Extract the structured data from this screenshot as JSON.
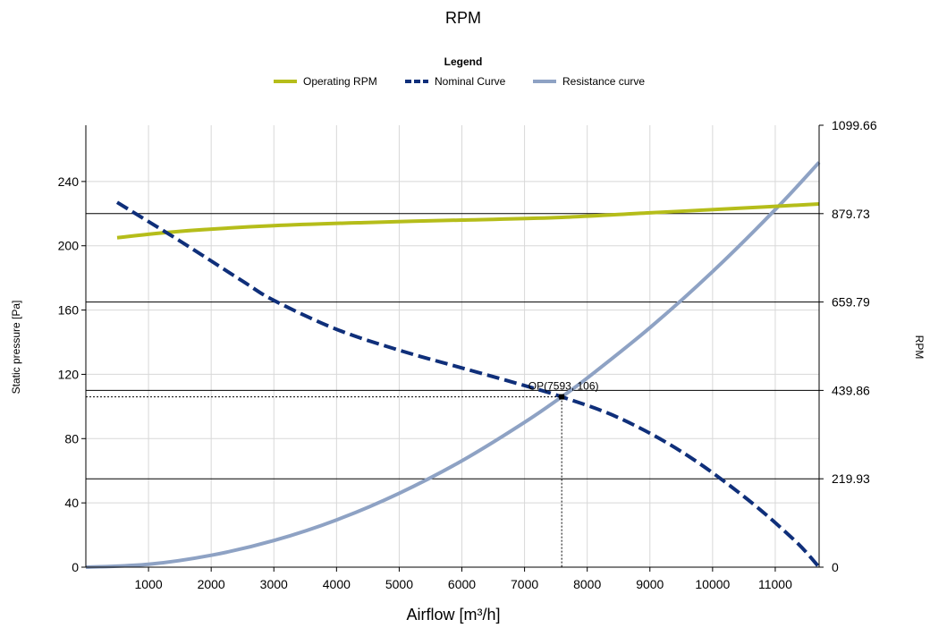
{
  "chart_data": {
    "type": "line",
    "title": "RPM",
    "legend_title": "Legend",
    "legend_position": "top-center",
    "grid": true,
    "xlabel": "Airflow [m³/h]",
    "ylabel": "Static pressure [Pa]",
    "y2label": "RPM",
    "xlim": [
      0,
      11700
    ],
    "ylim": [
      0,
      275
    ],
    "y2lim": [
      0,
      1099.66
    ],
    "x_ticks": [
      "1000",
      "2000",
      "3000",
      "4000",
      "5000",
      "6000",
      "7000",
      "8000",
      "9000",
      "10000",
      "11000"
    ],
    "y_ticks": [
      "0",
      "40",
      "80",
      "120",
      "160",
      "200",
      "240"
    ],
    "y2_ticks": [
      "0",
      "219.93",
      "439.86",
      "659.79",
      "879.73",
      "1099.66"
    ],
    "series": [
      {
        "name": "Operating RPM",
        "color": "#B5BD1A",
        "style": "solid",
        "x": [
          500,
          1500,
          3000,
          4500,
          6000,
          7500,
          9000,
          10500,
          11700
        ],
        "y": [
          205,
          209,
          212.5,
          214.5,
          216,
          217.5,
          220.5,
          223.5,
          226
        ]
      },
      {
        "name": "Nominal Curve",
        "color": "#0F2F7A",
        "style": "dashed",
        "x": [
          500,
          1500,
          2500,
          3000,
          4000,
          5000,
          6000,
          7000,
          7593,
          8500,
          9500,
          10500,
          11300,
          11700
        ],
        "y": [
          227,
          203,
          178,
          166,
          148,
          135,
          124,
          113,
          106,
          93,
          72,
          44,
          17,
          0
        ]
      },
      {
        "name": "Resistance curve",
        "color": "#8EA2C4",
        "style": "solid",
        "x": [
          0,
          1000,
          2000,
          3000,
          4000,
          5000,
          6000,
          7000,
          7593,
          8000,
          9000,
          10000,
          11000,
          11700
        ],
        "y": [
          0,
          1.8,
          7.4,
          16.6,
          29.4,
          46,
          66.2,
          90.1,
          106,
          117.7,
          149,
          183.9,
          222.5,
          251.9
        ]
      }
    ],
    "reference_lines_rpm": [
      219.93,
      439.86,
      659.79,
      879.73
    ],
    "operating_point": {
      "label": "OP(7593, 106)",
      "x": 7593,
      "y": 106
    }
  }
}
